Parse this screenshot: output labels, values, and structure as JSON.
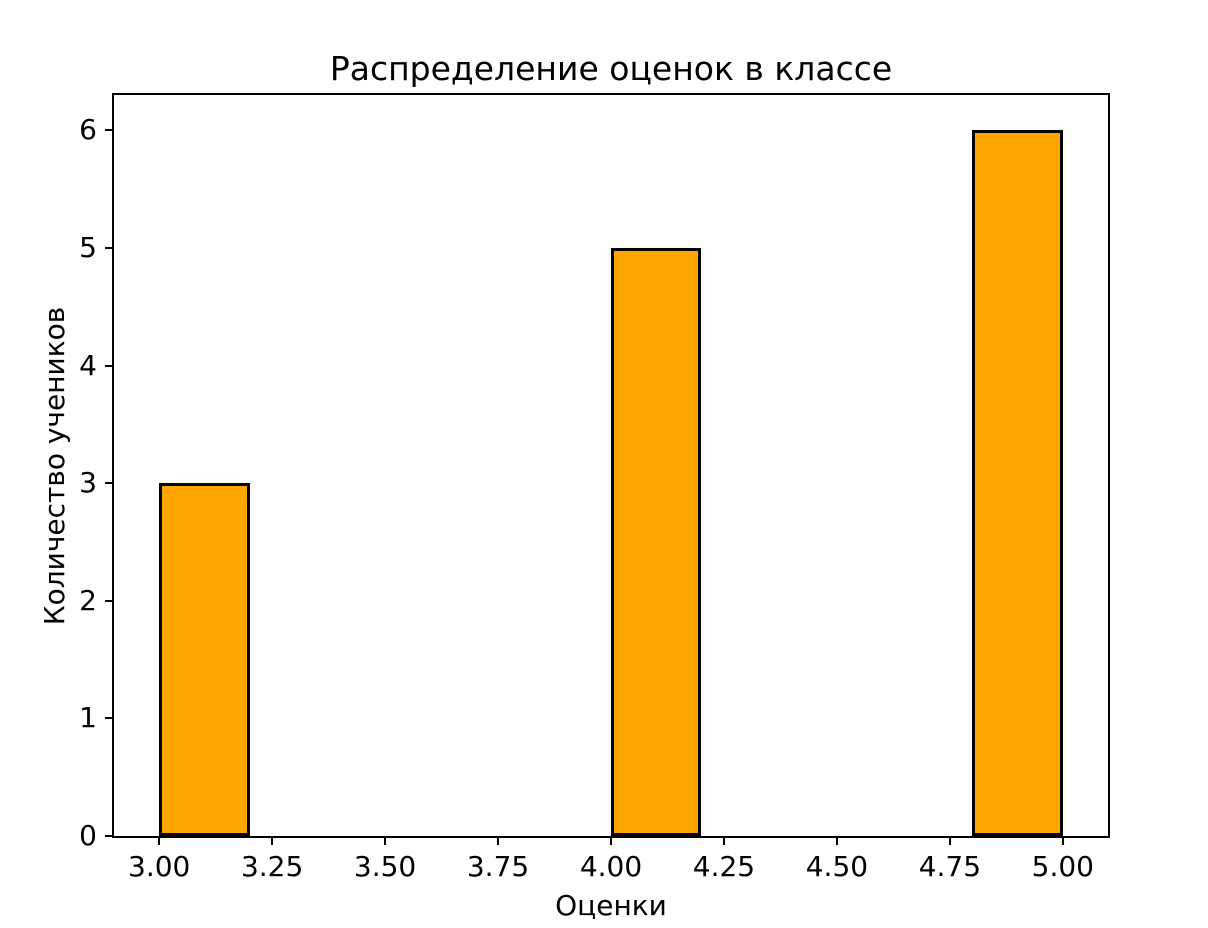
{
  "chart_data": {
    "type": "bar",
    "subtype": "histogram",
    "title": "Распределение оценок в классе",
    "xlabel": "Оценки",
    "ylabel": "Количество учеников",
    "categories": [
      3,
      4,
      5
    ],
    "values": [
      3,
      5,
      6
    ],
    "bars": [
      {
        "x_start": 3.0,
        "x_end": 3.2,
        "value": 3
      },
      {
        "x_start": 4.0,
        "x_end": 4.2,
        "value": 5
      },
      {
        "x_start": 4.8,
        "x_end": 5.0,
        "value": 6
      }
    ],
    "bin_width": 0.2,
    "xlim": [
      2.9,
      5.1
    ],
    "ylim": [
      0,
      6.3
    ],
    "x_ticks": [
      {
        "v": 3.0,
        "label": "3.00"
      },
      {
        "v": 3.25,
        "label": "3.25"
      },
      {
        "v": 3.5,
        "label": "3.50"
      },
      {
        "v": 3.75,
        "label": "3.75"
      },
      {
        "v": 4.0,
        "label": "4.00"
      },
      {
        "v": 4.25,
        "label": "4.25"
      },
      {
        "v": 4.5,
        "label": "4.50"
      },
      {
        "v": 4.75,
        "label": "4.75"
      },
      {
        "v": 5.0,
        "label": "5.00"
      }
    ],
    "y_ticks": [
      {
        "v": 0,
        "label": "0"
      },
      {
        "v": 1,
        "label": "1"
      },
      {
        "v": 2,
        "label": "2"
      },
      {
        "v": 3,
        "label": "3"
      },
      {
        "v": 4,
        "label": "4"
      },
      {
        "v": 5,
        "label": "5"
      },
      {
        "v": 6,
        "label": "6"
      }
    ],
    "bar_color": "#FFA500",
    "bar_edge_color": "#000000",
    "axis_color": "#000000",
    "background": "#FFFFFF",
    "grid": false,
    "legend": null
  }
}
